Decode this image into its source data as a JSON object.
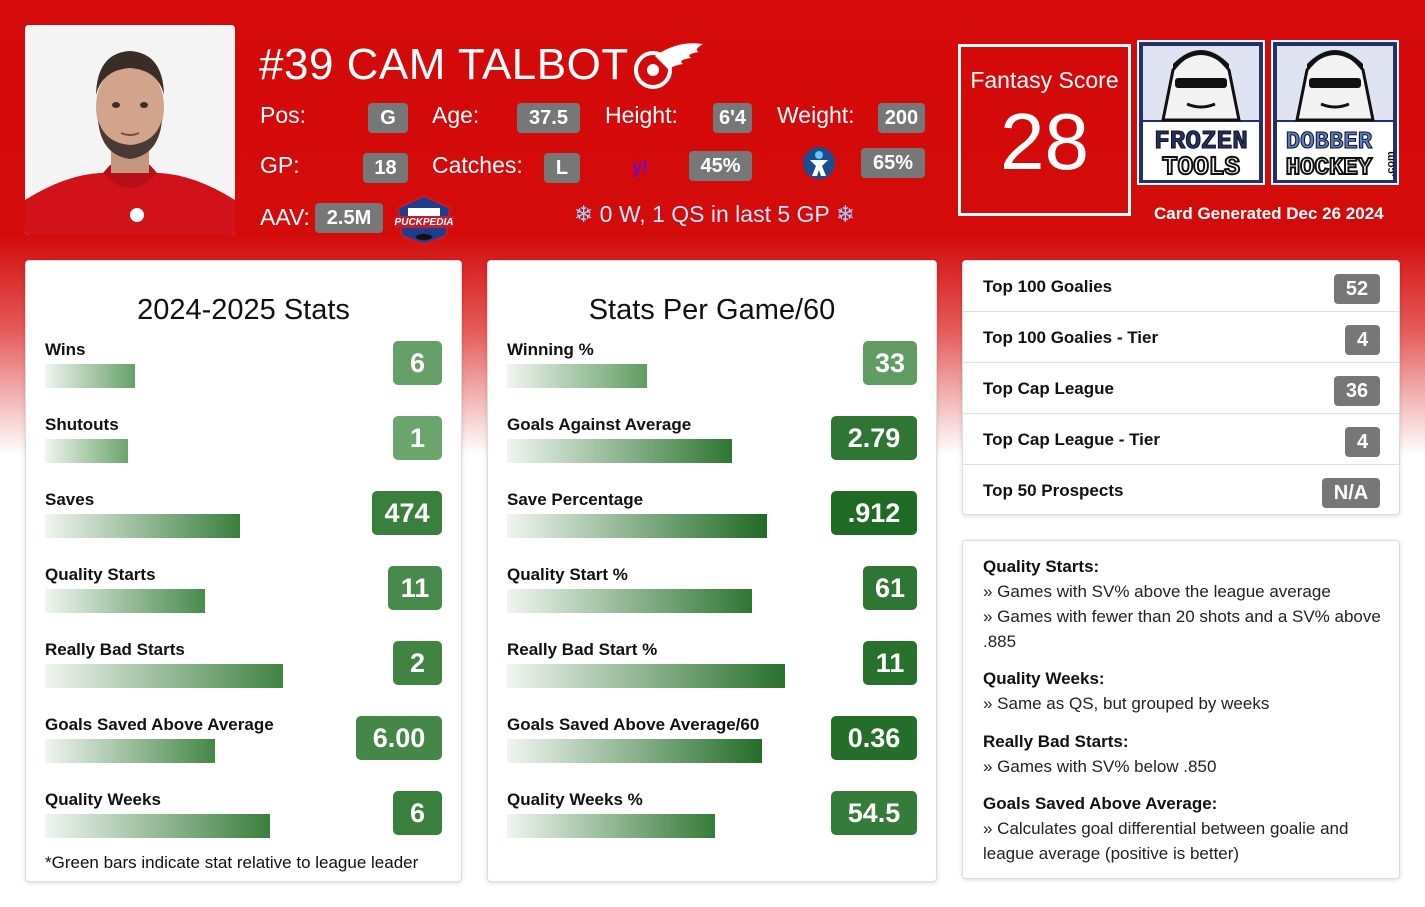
{
  "header": {
    "name": "#39 CAM TALBOT",
    "team_logo": "red-wings-logo",
    "pos_label": "Pos:",
    "pos": "G",
    "age_label": "Age:",
    "age": "37.5",
    "height_label": "Height:",
    "height": "6'4",
    "weight_label": "Weight:",
    "weight": "200",
    "gp_label": "GP:",
    "gp": "18",
    "catches_label": "Catches:",
    "catches": "L",
    "yahoo_pct": "45%",
    "espn_pct": "65%",
    "aav_label": "AAV:",
    "aav": "2.5M",
    "last5": "0 W, 1 QS in last 5 GP",
    "fantasy_label": "Fantasy Score",
    "fantasy_score": "28",
    "brand1_top": "FROZEN",
    "brand1_bottom": "TOOLS",
    "brand2_top": "DOBBER",
    "brand2_bottom": "HOCKEY",
    "brand2_side": ".com",
    "generated": "Card Generated Dec 26 2024"
  },
  "season": {
    "title": "2024-2025 Stats",
    "stats": [
      {
        "label": "Wins",
        "value": "6",
        "ratio": 0.36,
        "shade": 0.35
      },
      {
        "label": "Shutouts",
        "value": "1",
        "ratio": 0.33,
        "shade": 0.3
      },
      {
        "label": "Saves",
        "value": "474",
        "ratio": 0.78,
        "shade": 0.75
      },
      {
        "label": "Quality Starts",
        "value": "11",
        "ratio": 0.64,
        "shade": 0.62
      },
      {
        "label": "Really Bad Starts",
        "value": "2",
        "ratio": 0.95,
        "shade": 0.7
      },
      {
        "label": "Goals Saved Above Average",
        "value": "6.00",
        "ratio": 0.68,
        "shade": 0.65
      },
      {
        "label": "Quality Weeks",
        "value": "6",
        "ratio": 0.9,
        "shade": 0.75
      }
    ],
    "footnote": "*Green bars indicate stat relative to league leader"
  },
  "per_game": {
    "title": "Stats Per Game/60",
    "stats": [
      {
        "label": "Winning %",
        "value": "33",
        "ratio": 0.56,
        "shade": 0.4
      },
      {
        "label": "Goals Against Average",
        "value": "2.79",
        "ratio": 0.9,
        "shade": 0.85
      },
      {
        "label": "Save Percentage",
        "value": ".912",
        "ratio": 1.04,
        "shade": 1.0
      },
      {
        "label": "Quality Start %",
        "value": "61",
        "ratio": 0.98,
        "shade": 0.85
      },
      {
        "label": "Really Bad Start %",
        "value": "11",
        "ratio": 1.11,
        "shade": 0.92
      },
      {
        "label": "Goals Saved Above Average/60",
        "value": "0.36",
        "ratio": 1.02,
        "shade": 0.95
      },
      {
        "label": "Quality Weeks %",
        "value": "54.5",
        "ratio": 0.83,
        "shade": 0.8
      }
    ]
  },
  "rankings": [
    {
      "label": "Top 100 Goalies",
      "value": "52"
    },
    {
      "label": "Top 100 Goalies - Tier",
      "value": "4"
    },
    {
      "label": "Top Cap League",
      "value": "36"
    },
    {
      "label": "Top Cap League - Tier",
      "value": "4"
    },
    {
      "label": "Top 50 Prospects",
      "value": "N/A"
    }
  ],
  "legend": {
    "qs_title": "Quality Starts:",
    "qs_1": "» Games with SV% above the league average",
    "qs_2": "» Games with fewer than 20 shots and a SV% above .885",
    "qw_title": "Quality Weeks:",
    "qw_1": "» Same as QS, but grouped by weeks",
    "rbs_title": "Really Bad Starts:",
    "rbs_1": "» Games with SV% below .850",
    "gsaa_title": "Goals Saved Above Average:",
    "gsaa_1": "» Calculates goal differential between goalie and league average (positive is better)"
  },
  "colors": {
    "accent_red": "#d50a0a",
    "green_dark": "#2c6e2f",
    "green_light": "#8fbf8f",
    "pill_grey": "#777777"
  }
}
